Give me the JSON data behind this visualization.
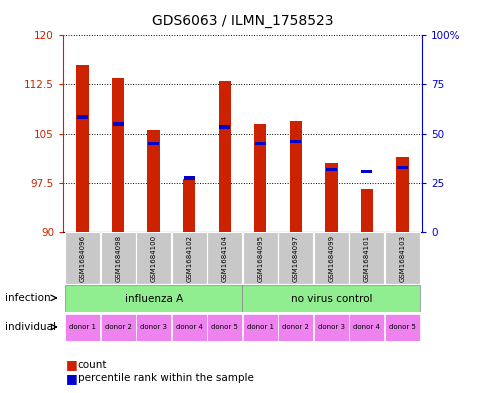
{
  "title": "GDS6063 / ILMN_1758523",
  "samples": [
    "GSM1684096",
    "GSM1684098",
    "GSM1684100",
    "GSM1684102",
    "GSM1684104",
    "GSM1684095",
    "GSM1684097",
    "GSM1684099",
    "GSM1684101",
    "GSM1684103"
  ],
  "count_values": [
    115.5,
    113.5,
    105.5,
    98.0,
    113.0,
    106.5,
    107.0,
    100.5,
    96.5,
    101.5
  ],
  "percentile_values": [
    107.5,
    106.5,
    103.5,
    98.2,
    106.0,
    103.5,
    103.8,
    99.5,
    99.2,
    99.8
  ],
  "ylim_left": [
    90,
    120
  ],
  "ylim_right": [
    0,
    100
  ],
  "left_ticks": [
    90,
    97.5,
    105,
    112.5,
    120
  ],
  "right_ticks": [
    0,
    25,
    50,
    75,
    100
  ],
  "individual_labels": [
    "donor 1",
    "donor 2",
    "donor 3",
    "donor 4",
    "donor 5",
    "donor 1",
    "donor 2",
    "donor 3",
    "donor 4",
    "donor 5"
  ],
  "individual_color": "#EE82EE",
  "infection_bg_color": "#90EE90",
  "bar_color": "#CC2200",
  "percentile_color": "#0000CC",
  "bar_width": 0.35,
  "sample_bg_color": "#C8C8C8",
  "fig_width": 4.85,
  "fig_height": 3.93,
  "dpi": 100
}
